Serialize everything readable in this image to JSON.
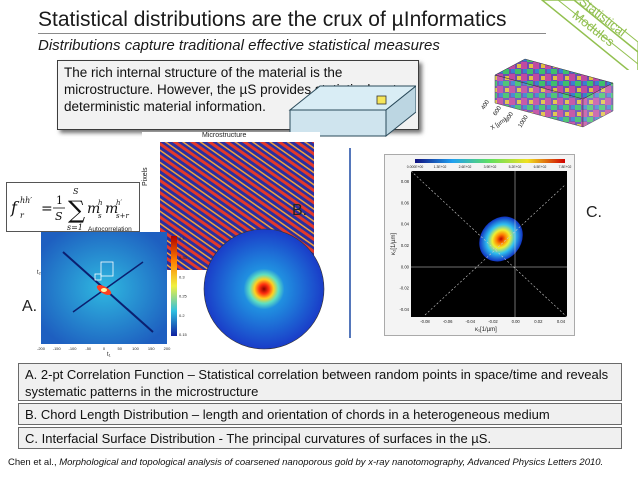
{
  "header": {
    "title": "Statistical distributions are the crux of µInformatics",
    "subtitle": "Distributions capture traditional effective statistical measures",
    "corner_tab_label": "Statistical Modules"
  },
  "callout": {
    "text": "The rich internal structure of the material is the microstructure.  However, the µS provides statistical, not deterministic material information."
  },
  "microstructure_figure": {
    "title": "Microstructure",
    "ylabel": "Pixels"
  },
  "formula": {
    "lhs_base": "f",
    "lhs_sub": "r",
    "lhs_sup": "hh′",
    "equals": "=",
    "fraction_num": "1",
    "fraction_den": "S",
    "sum_top": "S",
    "sum_bottom": "s=1",
    "term1_base": "m",
    "term1_sub": "s",
    "term1_sup": "h",
    "term2_base": "m",
    "term2_sub": "s+r",
    "term2_sup": "h′",
    "inset_label": "Autocorrelation"
  },
  "panel_labels": {
    "a": "A.",
    "b": "B.",
    "c": "C."
  },
  "cube_axis": {
    "label": "X [µm]",
    "ticks": [
      "400",
      "600",
      "800",
      "1000"
    ]
  },
  "plot_c": {
    "ylabel": "κ₂[1/µm]",
    "xlabel": "κ₁[1/µm]",
    "yticks": [
      "0.08",
      "0.06",
      "0.04",
      "0.02",
      "0.00",
      "-0.02",
      "-0.04"
    ],
    "xticks": [
      "-0.08",
      "-0.06",
      "-0.04",
      "-0.02",
      "0.00",
      "0.02",
      "0.04"
    ],
    "colorbar_ticks": [
      "0.000E+00",
      "1.3E+02",
      "2.6E+02",
      "3.9E+02",
      "5.2E+02",
      "6.5E+02",
      "7.8E+02"
    ]
  },
  "plot_a": {
    "xlabel": "t₁",
    "ylabel": "t₂",
    "xticks": [
      "-200",
      "-150",
      "-100",
      "-50",
      "0",
      "50",
      "100",
      "150",
      "200"
    ],
    "colorbar_ticks": [
      "0.4",
      "0.35",
      "0.3",
      "0.25",
      "0.2",
      "0.15"
    ]
  },
  "captions": [
    "A. 2-pt Correlation Function – Statistical correlation between random points in space/time and reveals systematic patterns in the microstructure",
    "B. Chord Length Distribution –  length and orientation of chords in a heterogeneous medium",
    "C. Interfacial Surface Distribution - The principal curvatures of surfaces in the µS."
  ],
  "citation": {
    "authors": "Chen et al., ",
    "title_journal": "Morphological and topological analysis of coarsened nanoporous gold by x-ray nanotomography, Advanced Physics Letters 2010."
  },
  "colors": {
    "accent_green": "#92c050",
    "title_text": "#1a1a1a",
    "callout_bg": "#f2f2f2"
  }
}
